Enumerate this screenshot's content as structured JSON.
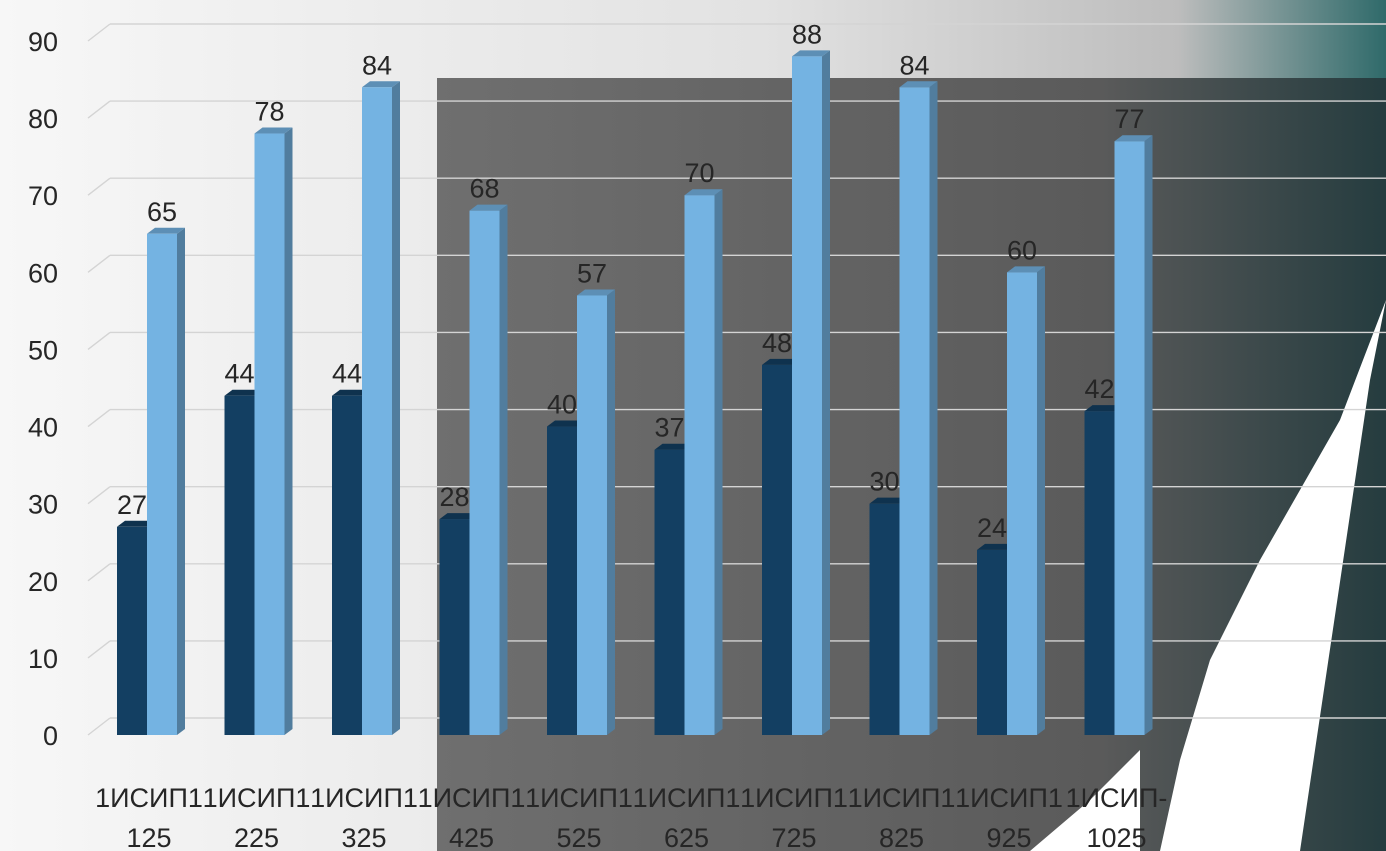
{
  "chart_data": {
    "type": "bar",
    "categories": [
      [
        "1ИСИП1",
        "125"
      ],
      [
        "1ИСИП1",
        "225"
      ],
      [
        "1ИСИП1",
        "325"
      ],
      [
        "1ИСИП1",
        "425"
      ],
      [
        "1ИСИП1",
        "525"
      ],
      [
        "1ИСИП1",
        "625"
      ],
      [
        "1ИСИП1",
        "725"
      ],
      [
        "1ИСИП1",
        "825"
      ],
      [
        "1ИСИП1",
        "925"
      ],
      [
        "1ИСИП-",
        "1025"
      ]
    ],
    "series": [
      {
        "values": [
          27,
          44,
          44,
          28,
          40,
          37,
          48,
          30,
          24,
          42
        ],
        "color": "#133f62"
      },
      {
        "values": [
          65,
          78,
          84,
          68,
          57,
          70,
          88,
          84,
          60,
          77
        ],
        "color": "#74b3e2"
      }
    ],
    "yticks": [
      0,
      10,
      20,
      30,
      40,
      50,
      60,
      70,
      80,
      90
    ],
    "ylim": [
      0,
      90
    ],
    "grid": true,
    "data_labels": true,
    "title": "",
    "xlabel": "",
    "ylabel": ""
  }
}
